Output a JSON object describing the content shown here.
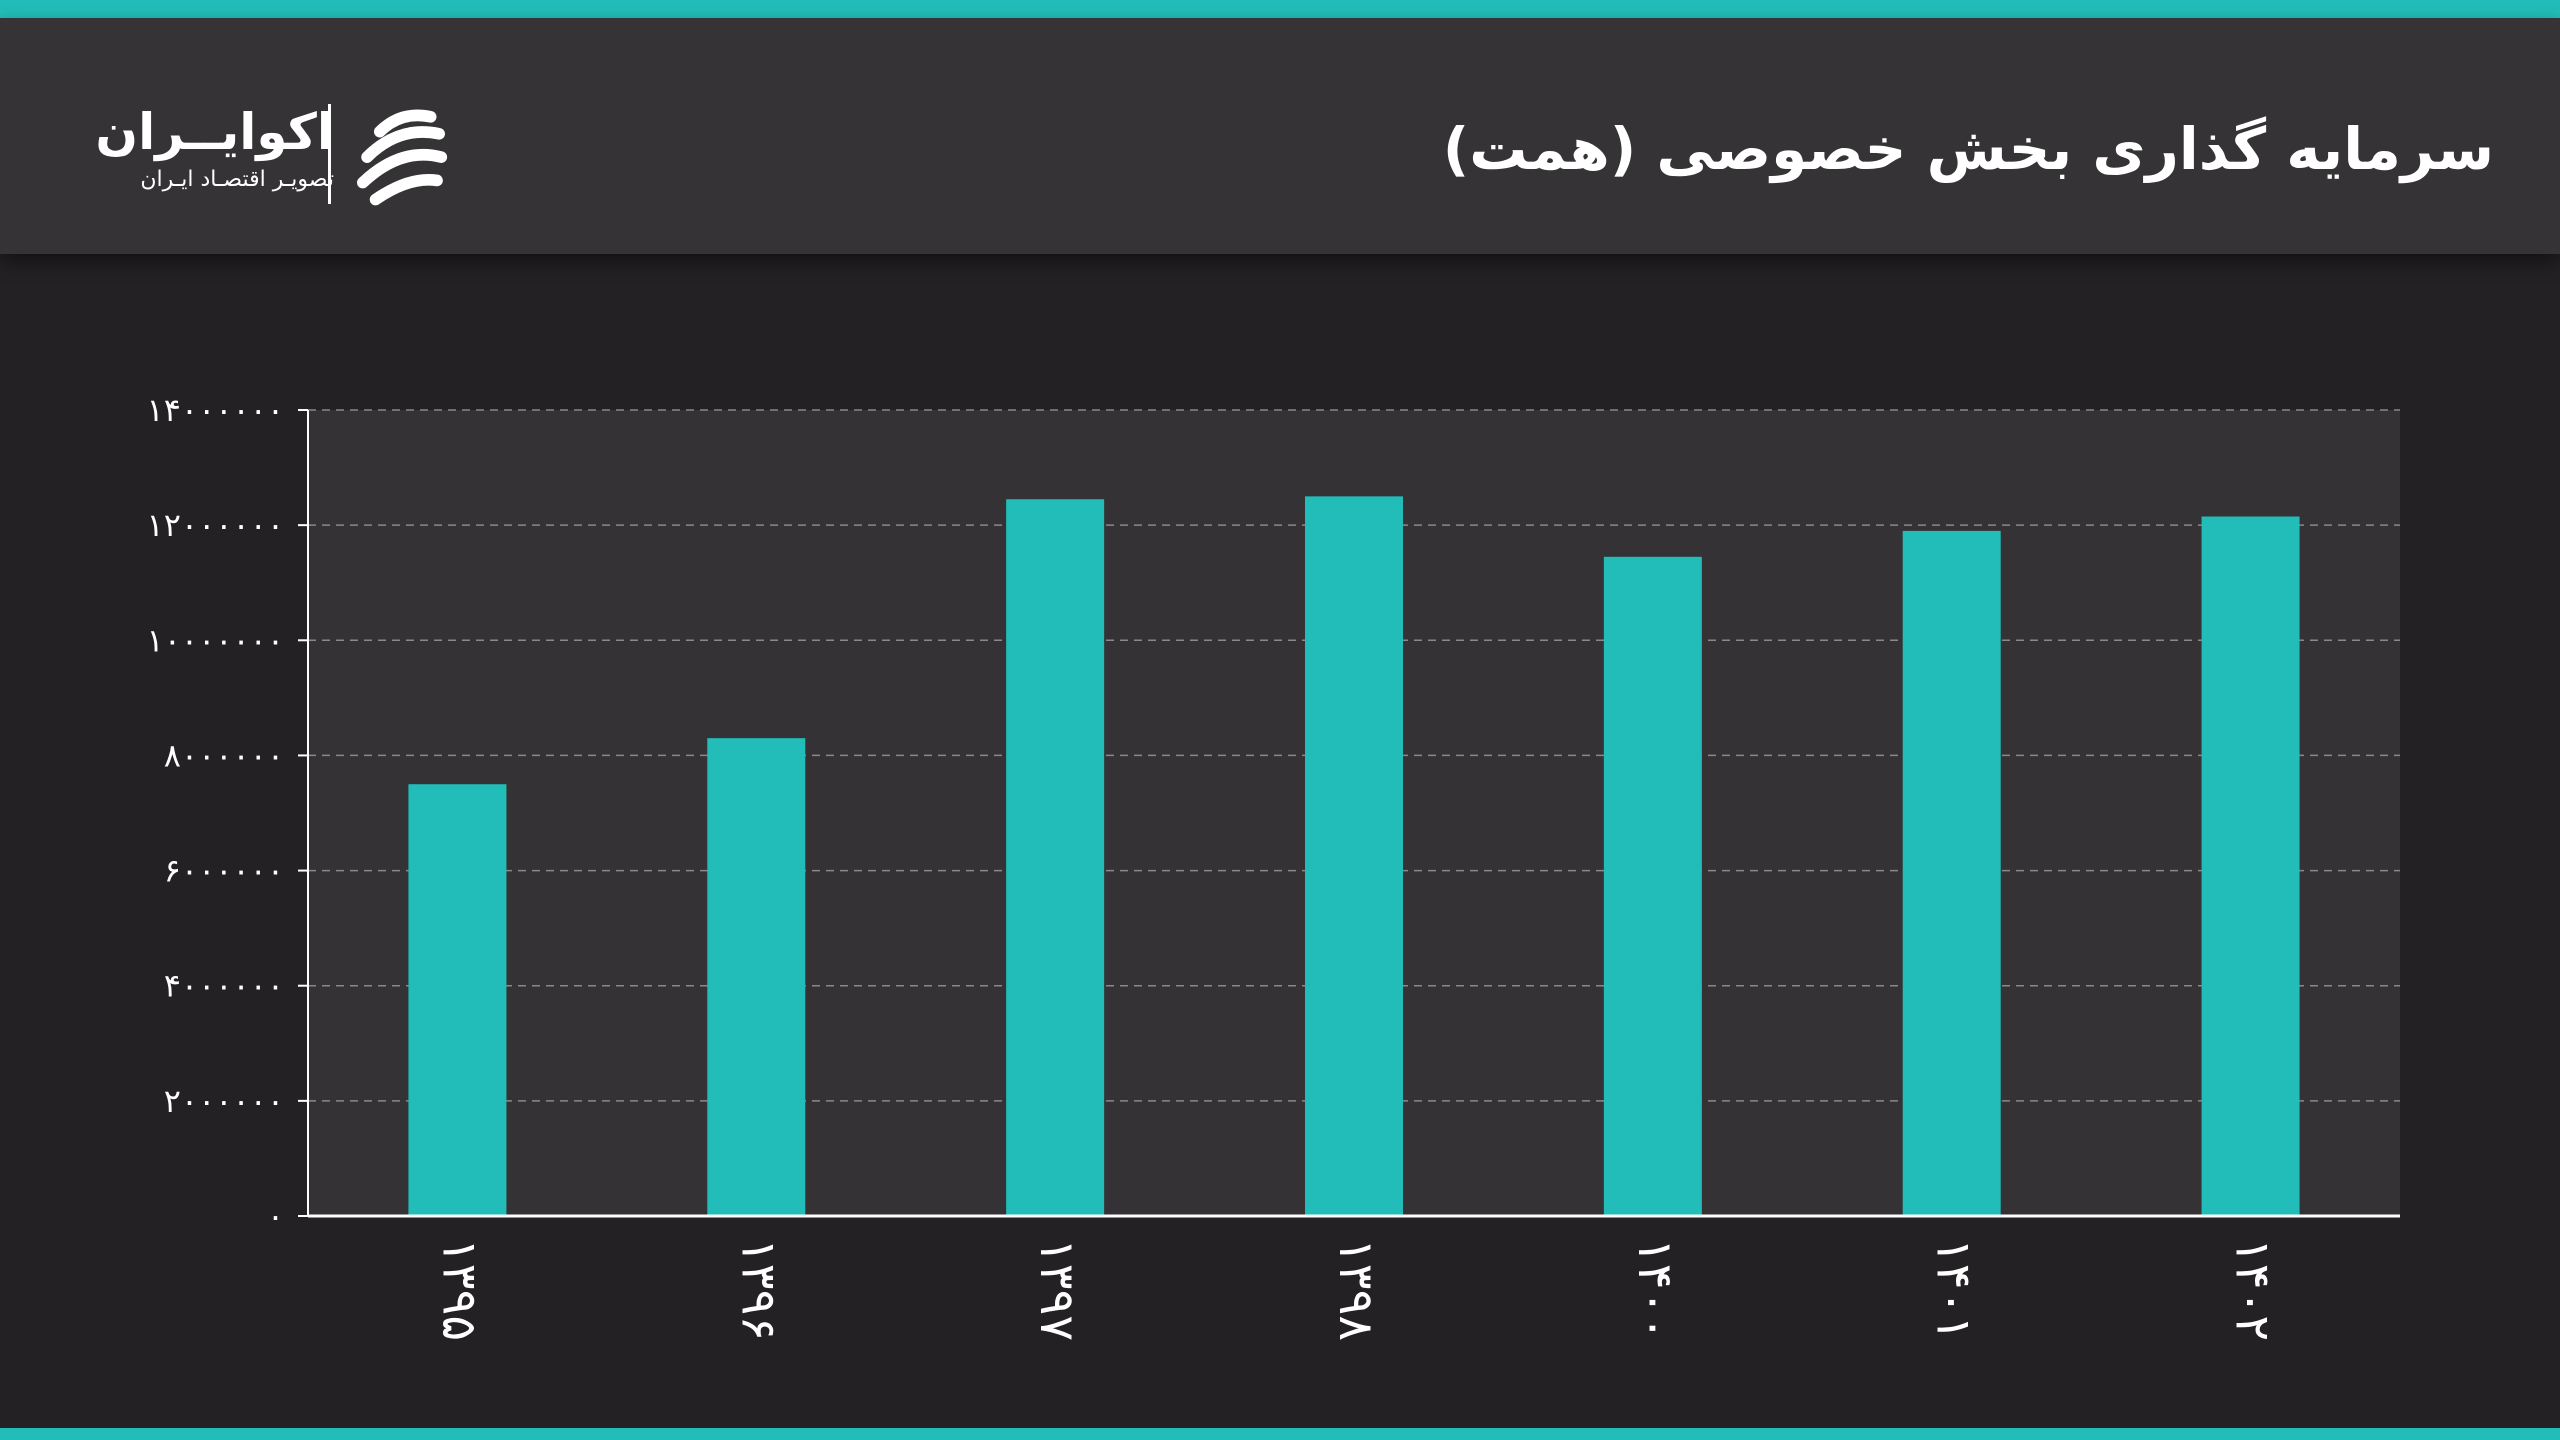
{
  "header": {
    "title": "سرمایه گذاری بخش خصوصی (همت)",
    "brand_name": "اکوایــران",
    "brand_tagline": "تصویـر اقتصـاد ایـران",
    "logo_icon": "ekoiran-logo-icon"
  },
  "colors": {
    "accent": "#22bdb8",
    "background": "#232123",
    "header_bg": "#353335",
    "plot_bg": "#343234",
    "text": "#ffffff"
  },
  "chart_data": {
    "type": "bar",
    "categories": [
      "۱۳۹۵",
      "۱۳۹۶",
      "۱۳۹۷",
      "۱۳۹۸",
      "۱۴۰۰",
      "۱۴۰۱",
      "۱۴۰۲"
    ],
    "values": [
      7500000,
      8300000,
      12450000,
      12500000,
      11450000,
      11900000,
      12150000
    ],
    "ylim": [
      0,
      14000000
    ],
    "yticks": [
      0,
      2000000,
      4000000,
      6000000,
      8000000,
      10000000,
      12000000,
      14000000
    ],
    "ytick_labels": [
      "۰",
      "۲۰۰۰۰۰۰",
      "۴۰۰۰۰۰۰",
      "۶۰۰۰۰۰۰",
      "۸۰۰۰۰۰۰",
      "۱۰۰۰۰۰۰۰",
      "۱۲۰۰۰۰۰۰",
      "۱۴۰۰۰۰۰۰"
    ],
    "grid": true,
    "legend": "none"
  }
}
